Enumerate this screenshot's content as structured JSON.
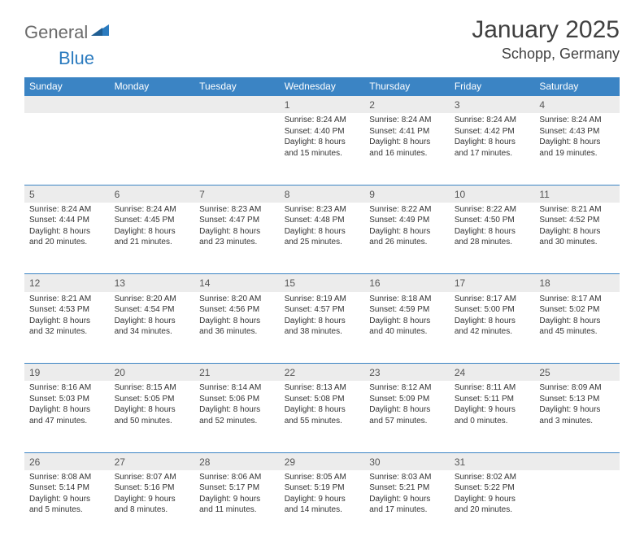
{
  "logo": {
    "word1": "General",
    "word2": "Blue",
    "color_gray": "#6a6a6a",
    "color_blue": "#2b7bbf"
  },
  "header": {
    "month_title": "January 2025",
    "location": "Schopp, Germany"
  },
  "colors": {
    "header_bg": "#3b84c4",
    "header_text": "#ffffff",
    "daynum_bg": "#ececec",
    "divider": "#3b84c4",
    "body_text": "#333333"
  },
  "day_headers": [
    "Sunday",
    "Monday",
    "Tuesday",
    "Wednesday",
    "Thursday",
    "Friday",
    "Saturday"
  ],
  "weeks": [
    [
      null,
      null,
      null,
      {
        "n": "1",
        "sr": "8:24 AM",
        "ss": "4:40 PM",
        "dl": "8 hours and 15 minutes."
      },
      {
        "n": "2",
        "sr": "8:24 AM",
        "ss": "4:41 PM",
        "dl": "8 hours and 16 minutes."
      },
      {
        "n": "3",
        "sr": "8:24 AM",
        "ss": "4:42 PM",
        "dl": "8 hours and 17 minutes."
      },
      {
        "n": "4",
        "sr": "8:24 AM",
        "ss": "4:43 PM",
        "dl": "8 hours and 19 minutes."
      }
    ],
    [
      {
        "n": "5",
        "sr": "8:24 AM",
        "ss": "4:44 PM",
        "dl": "8 hours and 20 minutes."
      },
      {
        "n": "6",
        "sr": "8:24 AM",
        "ss": "4:45 PM",
        "dl": "8 hours and 21 minutes."
      },
      {
        "n": "7",
        "sr": "8:23 AM",
        "ss": "4:47 PM",
        "dl": "8 hours and 23 minutes."
      },
      {
        "n": "8",
        "sr": "8:23 AM",
        "ss": "4:48 PM",
        "dl": "8 hours and 25 minutes."
      },
      {
        "n": "9",
        "sr": "8:22 AM",
        "ss": "4:49 PM",
        "dl": "8 hours and 26 minutes."
      },
      {
        "n": "10",
        "sr": "8:22 AM",
        "ss": "4:50 PM",
        "dl": "8 hours and 28 minutes."
      },
      {
        "n": "11",
        "sr": "8:21 AM",
        "ss": "4:52 PM",
        "dl": "8 hours and 30 minutes."
      }
    ],
    [
      {
        "n": "12",
        "sr": "8:21 AM",
        "ss": "4:53 PM",
        "dl": "8 hours and 32 minutes."
      },
      {
        "n": "13",
        "sr": "8:20 AM",
        "ss": "4:54 PM",
        "dl": "8 hours and 34 minutes."
      },
      {
        "n": "14",
        "sr": "8:20 AM",
        "ss": "4:56 PM",
        "dl": "8 hours and 36 minutes."
      },
      {
        "n": "15",
        "sr": "8:19 AM",
        "ss": "4:57 PM",
        "dl": "8 hours and 38 minutes."
      },
      {
        "n": "16",
        "sr": "8:18 AM",
        "ss": "4:59 PM",
        "dl": "8 hours and 40 minutes."
      },
      {
        "n": "17",
        "sr": "8:17 AM",
        "ss": "5:00 PM",
        "dl": "8 hours and 42 minutes."
      },
      {
        "n": "18",
        "sr": "8:17 AM",
        "ss": "5:02 PM",
        "dl": "8 hours and 45 minutes."
      }
    ],
    [
      {
        "n": "19",
        "sr": "8:16 AM",
        "ss": "5:03 PM",
        "dl": "8 hours and 47 minutes."
      },
      {
        "n": "20",
        "sr": "8:15 AM",
        "ss": "5:05 PM",
        "dl": "8 hours and 50 minutes."
      },
      {
        "n": "21",
        "sr": "8:14 AM",
        "ss": "5:06 PM",
        "dl": "8 hours and 52 minutes."
      },
      {
        "n": "22",
        "sr": "8:13 AM",
        "ss": "5:08 PM",
        "dl": "8 hours and 55 minutes."
      },
      {
        "n": "23",
        "sr": "8:12 AM",
        "ss": "5:09 PM",
        "dl": "8 hours and 57 minutes."
      },
      {
        "n": "24",
        "sr": "8:11 AM",
        "ss": "5:11 PM",
        "dl": "9 hours and 0 minutes."
      },
      {
        "n": "25",
        "sr": "8:09 AM",
        "ss": "5:13 PM",
        "dl": "9 hours and 3 minutes."
      }
    ],
    [
      {
        "n": "26",
        "sr": "8:08 AM",
        "ss": "5:14 PM",
        "dl": "9 hours and 5 minutes."
      },
      {
        "n": "27",
        "sr": "8:07 AM",
        "ss": "5:16 PM",
        "dl": "9 hours and 8 minutes."
      },
      {
        "n": "28",
        "sr": "8:06 AM",
        "ss": "5:17 PM",
        "dl": "9 hours and 11 minutes."
      },
      {
        "n": "29",
        "sr": "8:05 AM",
        "ss": "5:19 PM",
        "dl": "9 hours and 14 minutes."
      },
      {
        "n": "30",
        "sr": "8:03 AM",
        "ss": "5:21 PM",
        "dl": "9 hours and 17 minutes."
      },
      {
        "n": "31",
        "sr": "8:02 AM",
        "ss": "5:22 PM",
        "dl": "9 hours and 20 minutes."
      },
      null
    ]
  ],
  "labels": {
    "sunrise": "Sunrise:",
    "sunset": "Sunset:",
    "daylight": "Daylight:"
  }
}
